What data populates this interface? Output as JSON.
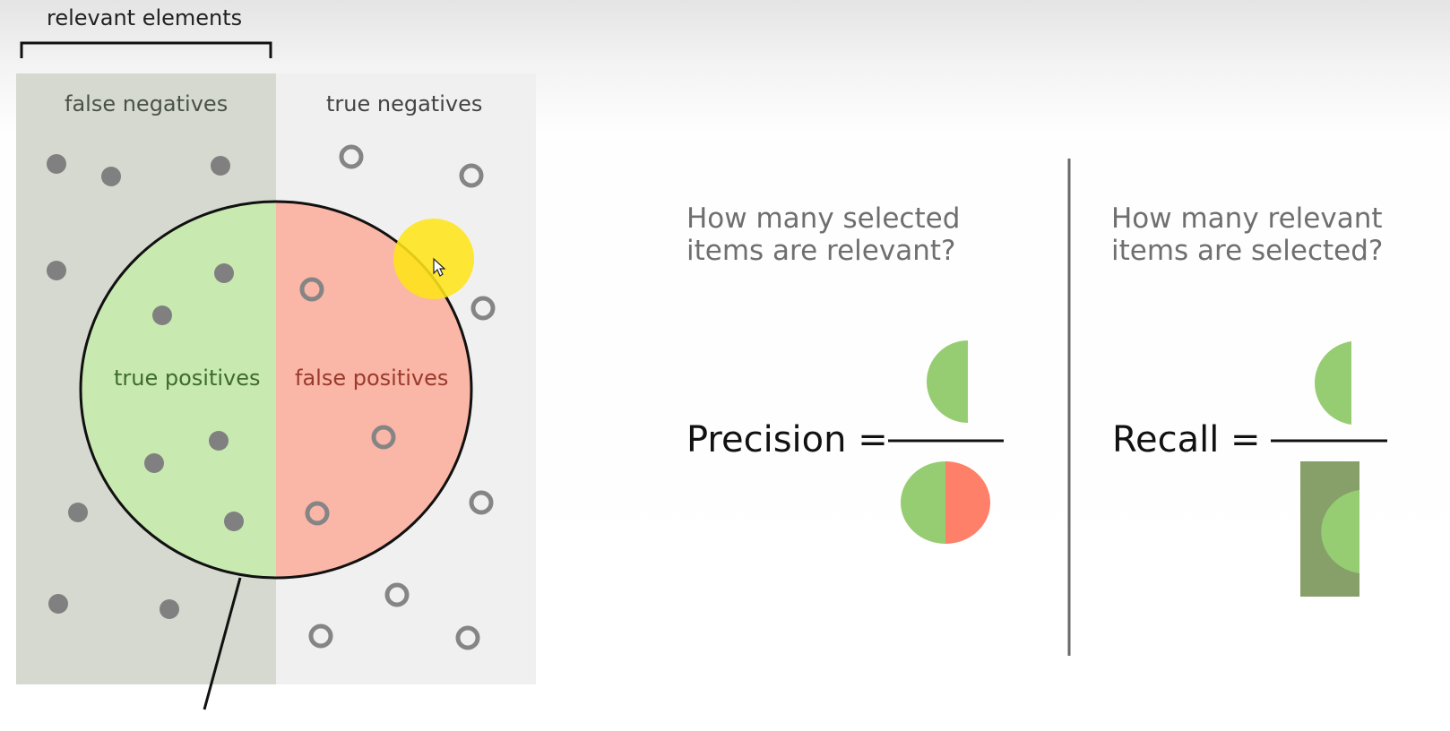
{
  "labels": {
    "relevant_elements": "relevant elements",
    "false_negatives": "false negatives",
    "true_negatives": "true negatives",
    "true_positives": "true positives",
    "false_positives": "false positives"
  },
  "precision": {
    "question": "How many selected items are relevant?",
    "formula_label": "Precision ="
  },
  "recall": {
    "question": "How many relevant items are selected?",
    "formula_label": "Recall ="
  },
  "colors": {
    "relevant_panel": "#d6d9cf",
    "irrelevant_panel": "#f0f0f1",
    "true_positive_fill": "#c8eab0",
    "false_positive_fill": "#fab6a6",
    "green_half": "#97cd72",
    "red_half": "#fe8068",
    "relevant_box": "#87a06a",
    "dot": "#808080",
    "cursor_highlight": "#ffe419"
  },
  "icons": {
    "cursor": "mouse-cursor-icon",
    "filled_dot": "relevant-item-dot-icon",
    "hollow_ring": "irrelevant-item-ring-icon"
  }
}
